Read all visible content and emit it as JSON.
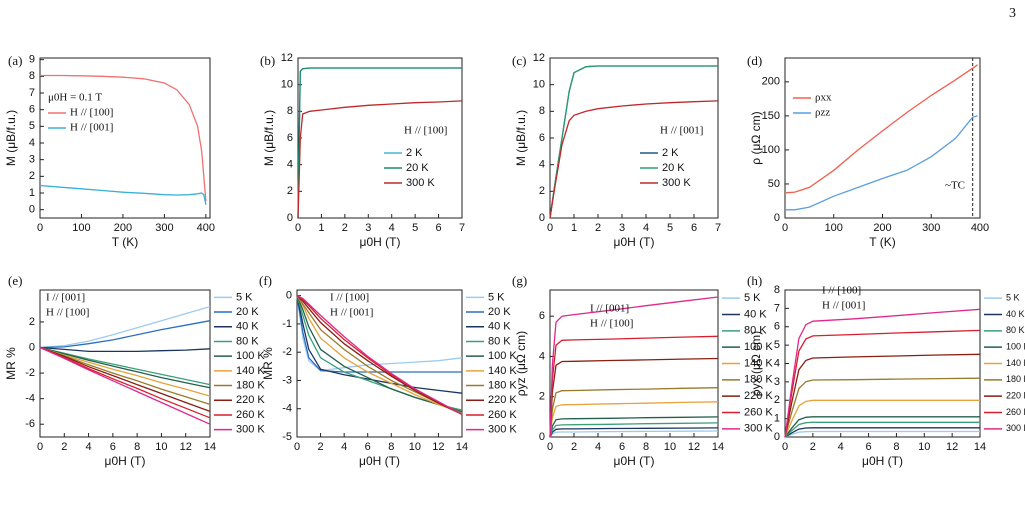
{
  "page_number": "3",
  "chart_data": [
    {
      "type": "line",
      "label": "(a)",
      "xlabel": "T (K)",
      "ylabel": "M (μB/f.u.)",
      "xlim": [
        0,
        410
      ],
      "ylim": [
        -0.5,
        9.1
      ],
      "xticks": [
        0,
        100,
        200,
        300,
        400
      ],
      "yticks": [
        0,
        1,
        2,
        3,
        4,
        5,
        6,
        7,
        8,
        9
      ],
      "legend": "upper left",
      "annotations": [
        "μ0H = 0.1 T"
      ],
      "x": [
        0,
        50,
        100,
        150,
        200,
        250,
        300,
        330,
        360,
        380,
        390,
        395,
        400
      ],
      "series": [
        {
          "name": "H // [100]",
          "color": "#f07070",
          "values": [
            8.05,
            8.05,
            8.03,
            8.0,
            7.95,
            7.85,
            7.6,
            7.2,
            6.3,
            5,
            3.5,
            2,
            0.5
          ]
        },
        {
          "name": "H // [001]",
          "color": "#3ab0d8",
          "values": [
            1.45,
            1.35,
            1.25,
            1.15,
            1.05,
            0.98,
            0.9,
            0.88,
            0.9,
            0.95,
            1.0,
            0.9,
            0.3
          ]
        }
      ]
    },
    {
      "type": "line",
      "label": "(b)",
      "xlabel": "μ0H (T)",
      "ylabel": "M (μB/f.u.)",
      "xlim": [
        0,
        7
      ],
      "ylim": [
        0,
        12
      ],
      "xticks": [
        0,
        1,
        2,
        3,
        4,
        5,
        6,
        7
      ],
      "yticks": [
        0,
        2,
        4,
        6,
        8,
        10,
        12
      ],
      "legend": "lower right",
      "annotations": [
        "H // [100]"
      ],
      "x": [
        0,
        0.05,
        0.1,
        0.2,
        0.5,
        1,
        2,
        3,
        4,
        5,
        6,
        7
      ],
      "series": [
        {
          "name": "2 K",
          "color": "#40b8d8",
          "values": [
            0,
            6,
            11,
            11.2,
            11.25,
            11.25,
            11.25,
            11.25,
            11.25,
            11.25,
            11.25,
            11.25
          ]
        },
        {
          "name": "20 K",
          "color": "#1a8a6a",
          "values": [
            0,
            6,
            11,
            11.2,
            11.25,
            11.25,
            11.25,
            11.25,
            11.25,
            11.25,
            11.25,
            11.25
          ]
        },
        {
          "name": "300 K",
          "color": "#c0282a",
          "values": [
            0,
            3,
            6,
            7.8,
            8.0,
            8.1,
            8.3,
            8.45,
            8.55,
            8.65,
            8.7,
            8.78
          ]
        }
      ]
    },
    {
      "type": "line",
      "label": "(c)",
      "xlabel": "μ0H (T)",
      "ylabel": "M (μB/f.u.)",
      "xlim": [
        0,
        7
      ],
      "ylim": [
        0,
        12
      ],
      "xticks": [
        0,
        1,
        2,
        3,
        4,
        5,
        6,
        7
      ],
      "yticks": [
        0,
        2,
        4,
        6,
        8,
        10,
        12
      ],
      "legend": "lower right",
      "annotations": [
        "H // [001]"
      ],
      "x": [
        0,
        0.2,
        0.5,
        0.8,
        1,
        1.5,
        2,
        3,
        4,
        5,
        6,
        7
      ],
      "series": [
        {
          "name": "2 K",
          "color": "#1a5a8a",
          "values": [
            0,
            2.5,
            6,
            9.5,
            10.9,
            11.35,
            11.4,
            11.4,
            11.4,
            11.4,
            11.4,
            11.4
          ]
        },
        {
          "name": "20 K",
          "color": "#2aa070",
          "values": [
            0,
            2.5,
            6,
            9.5,
            10.9,
            11.35,
            11.4,
            11.4,
            11.4,
            11.4,
            11.4,
            11.4
          ]
        },
        {
          "name": "300 K",
          "color": "#c0282a",
          "values": [
            0,
            2.3,
            5.5,
            7.3,
            7.7,
            8.0,
            8.2,
            8.4,
            8.55,
            8.65,
            8.72,
            8.78
          ]
        }
      ]
    },
    {
      "type": "line",
      "label": "(d)",
      "xlabel": "T (K)",
      "ylabel": "ρ (μΩ cm)",
      "xlim": [
        0,
        400
      ],
      "ylim": [
        0,
        235
      ],
      "xticks": [
        0,
        100,
        200,
        300,
        400
      ],
      "yticks": [
        0,
        50,
        100,
        150,
        200
      ],
      "legend": "upper left",
      "annotations": [
        "~TC"
      ],
      "vline": 385,
      "x": [
        2,
        20,
        50,
        100,
        150,
        200,
        250,
        300,
        350,
        385,
        395
      ],
      "series": [
        {
          "name": "ρxx",
          "color": "#f06050",
          "values": [
            37,
            38,
            45,
            70,
            100,
            128,
            155,
            180,
            203,
            220,
            225
          ]
        },
        {
          "name": "ρzz",
          "color": "#5a9ee0",
          "values": [
            12,
            12,
            16,
            32,
            45,
            58,
            70,
            90,
            117,
            148,
            150
          ]
        }
      ]
    },
    {
      "type": "line",
      "label": "(e)",
      "xlabel": "μ0H (T)",
      "ylabel": "MR %",
      "xlim": [
        0,
        14
      ],
      "ylim": [
        -7,
        4.5
      ],
      "xticks": [
        0,
        2,
        4,
        6,
        8,
        10,
        12,
        14
      ],
      "yticks": [
        -6,
        -4,
        -2,
        0,
        2
      ],
      "legend": "outside right",
      "annotations": [
        "I // [001]",
        "H // [100]"
      ],
      "x": [
        0,
        2,
        4,
        6,
        8,
        10,
        12,
        14
      ],
      "series": [
        {
          "name": "5 K",
          "color": "#9ccbf0",
          "values": [
            0,
            0.15,
            0.5,
            1.0,
            1.55,
            2.1,
            2.65,
            3.2
          ]
        },
        {
          "name": "20 K",
          "color": "#2a6fc0",
          "values": [
            0,
            0.05,
            0.3,
            0.6,
            1.0,
            1.4,
            1.75,
            2.1
          ]
        },
        {
          "name": "40 K",
          "color": "#1b355f",
          "values": [
            0,
            -0.15,
            -0.3,
            -0.3,
            -0.3,
            -0.25,
            -0.2,
            -0.1
          ]
        },
        {
          "name": "80 K",
          "color": "#3aa07a",
          "values": [
            0,
            -0.45,
            -0.9,
            -1.3,
            -1.7,
            -2.1,
            -2.5,
            -2.9
          ]
        },
        {
          "name": "100 K",
          "color": "#22604a",
          "values": [
            0,
            -0.5,
            -1.0,
            -1.45,
            -1.9,
            -2.35,
            -2.75,
            -3.15
          ]
        },
        {
          "name": "140 K",
          "color": "#e8a23c",
          "values": [
            0,
            -0.6,
            -1.15,
            -1.7,
            -2.2,
            -2.75,
            -3.25,
            -3.8
          ]
        },
        {
          "name": "180 K",
          "color": "#9a7a2a",
          "values": [
            0,
            -0.65,
            -1.35,
            -2.0,
            -2.6,
            -3.25,
            -3.85,
            -4.45
          ]
        },
        {
          "name": "220 K",
          "color": "#8a1e12",
          "values": [
            0,
            -0.7,
            -1.5,
            -2.2,
            -2.9,
            -3.6,
            -4.3,
            -5.0
          ]
        },
        {
          "name": "260 K",
          "color": "#d81e2e",
          "values": [
            0,
            -0.8,
            -1.65,
            -2.45,
            -3.2,
            -4.0,
            -4.75,
            -5.5
          ]
        },
        {
          "name": "300 K",
          "color": "#e0288c",
          "values": [
            0,
            -0.85,
            -1.75,
            -2.6,
            -3.45,
            -4.3,
            -5.15,
            -6.0
          ]
        }
      ]
    },
    {
      "type": "line",
      "label": "(f)",
      "xlabel": "μ0H (T)",
      "ylabel": "MR %",
      "xlim": [
        0,
        14
      ],
      "ylim": [
        -5,
        0.2
      ],
      "xticks": [
        0,
        2,
        4,
        6,
        8,
        10,
        12,
        14
      ],
      "yticks": [
        -5,
        -4,
        -3,
        -2,
        -1,
        0
      ],
      "legend": "outside right",
      "annotations": [
        "I // [100]",
        "H // [001]"
      ],
      "x": [
        0,
        0.5,
        1,
        2,
        4,
        6,
        8,
        10,
        12,
        14
      ],
      "series": [
        {
          "name": "5 K",
          "color": "#9ccbf0",
          "values": [
            0,
            -1.5,
            -2.3,
            -2.65,
            -2.55,
            -2.45,
            -2.4,
            -2.35,
            -2.3,
            -2.2
          ]
        },
        {
          "name": "20 K",
          "color": "#2a6fc0",
          "values": [
            0,
            -1.3,
            -2.2,
            -2.65,
            -2.7,
            -2.7,
            -2.7,
            -2.7,
            -2.7,
            -2.7
          ]
        },
        {
          "name": "40 K",
          "color": "#1b355f",
          "values": [
            0,
            -1.0,
            -1.9,
            -2.6,
            -2.8,
            -2.95,
            -3.1,
            -3.25,
            -3.35,
            -3.45
          ]
        },
        {
          "name": "80 K",
          "color": "#3aa07a",
          "values": [
            0,
            -0.7,
            -1.4,
            -2.2,
            -2.7,
            -3.0,
            -3.3,
            -3.6,
            -3.85,
            -4.05
          ]
        },
        {
          "name": "100 K",
          "color": "#22604a",
          "values": [
            0,
            -0.5,
            -1.1,
            -1.9,
            -2.5,
            -2.9,
            -3.3,
            -3.6,
            -3.85,
            -4.1
          ]
        },
        {
          "name": "140 K",
          "color": "#e8a23c",
          "values": [
            0,
            -0.35,
            -0.8,
            -1.5,
            -2.2,
            -2.7,
            -3.1,
            -3.5,
            -3.85,
            -4.15
          ]
        },
        {
          "name": "180 K",
          "color": "#9a7a2a",
          "values": [
            0,
            -0.3,
            -0.6,
            -1.2,
            -1.9,
            -2.5,
            -3.0,
            -3.4,
            -3.8,
            -4.15
          ]
        },
        {
          "name": "220 K",
          "color": "#8a1e12",
          "values": [
            0,
            -0.2,
            -0.45,
            -0.95,
            -1.7,
            -2.3,
            -2.85,
            -3.35,
            -3.8,
            -4.2
          ]
        },
        {
          "name": "260 K",
          "color": "#d81e2e",
          "values": [
            0,
            -0.15,
            -0.35,
            -0.8,
            -1.55,
            -2.2,
            -2.8,
            -3.3,
            -3.75,
            -4.2
          ]
        },
        {
          "name": "300 K",
          "color": "#e0288c",
          "values": [
            0,
            -0.1,
            -0.3,
            -0.7,
            -1.45,
            -2.15,
            -2.75,
            -3.3,
            -3.75,
            -4.2
          ]
        }
      ]
    },
    {
      "type": "line",
      "label": "(g)",
      "xlabel": "μ0H (T)",
      "ylabel": "ρyz (μΩ cm)",
      "xlim": [
        0,
        14
      ],
      "ylim": [
        0,
        7.3
      ],
      "xticks": [
        0,
        2,
        4,
        6,
        8,
        10,
        12,
        14
      ],
      "yticks": [
        0,
        2,
        4,
        6
      ],
      "legend": "outside right",
      "annotations": [
        "I // [001]",
        "H // [100]"
      ],
      "x": [
        0,
        0.2,
        0.5,
        1,
        2,
        5,
        8,
        11,
        14
      ],
      "series": [
        {
          "name": "5 K",
          "color": "#9ccbf0",
          "values": [
            0,
            0.15,
            0.24,
            0.25,
            0.25,
            0.27,
            0.28,
            0.29,
            0.3
          ]
        },
        {
          "name": "40 K",
          "color": "#1b355f",
          "values": [
            0,
            0.24,
            0.38,
            0.4,
            0.4,
            0.42,
            0.43,
            0.44,
            0.45
          ]
        },
        {
          "name": "80 K",
          "color": "#3aa07a",
          "values": [
            0,
            0.36,
            0.57,
            0.6,
            0.61,
            0.63,
            0.66,
            0.68,
            0.7
          ]
        },
        {
          "name": "100 K",
          "color": "#22604a",
          "values": [
            0,
            0.54,
            0.86,
            0.9,
            0.91,
            0.93,
            0.96,
            0.98,
            1.0
          ]
        },
        {
          "name": "140 K",
          "color": "#e8a23c",
          "values": [
            0,
            0.96,
            1.52,
            1.6,
            1.61,
            1.65,
            1.68,
            1.72,
            1.75
          ]
        },
        {
          "name": "180 K",
          "color": "#9a7a2a",
          "values": [
            0,
            1.38,
            2.19,
            2.3,
            2.31,
            2.35,
            2.38,
            2.42,
            2.45
          ]
        },
        {
          "name": "220 K",
          "color": "#8a1e12",
          "values": [
            0,
            2.25,
            3.56,
            3.75,
            3.76,
            3.8,
            3.83,
            3.87,
            3.9
          ]
        },
        {
          "name": "260 K",
          "color": "#d81e2e",
          "values": [
            0,
            2.88,
            4.56,
            4.8,
            4.82,
            4.86,
            4.91,
            4.96,
            5.0
          ]
        },
        {
          "name": "300 K",
          "color": "#e0288c",
          "values": [
            0,
            3.6,
            5.7,
            6.0,
            6.08,
            6.29,
            6.52,
            6.74,
            6.95
          ]
        }
      ]
    },
    {
      "type": "line",
      "label": "(h)",
      "xlabel": "μ0H (T)",
      "ylabel": "ρyx (μΩ cm)",
      "xlim": [
        0,
        14
      ],
      "ylim": [
        0,
        8
      ],
      "xticks": [
        0,
        2,
        4,
        6,
        8,
        10,
        12,
        14
      ],
      "yticks": [
        0,
        1,
        2,
        3,
        4,
        5,
        6,
        7,
        8
      ],
      "legend": "outside right",
      "annotations": [
        "I // [100]",
        "H // [001]"
      ],
      "x": [
        0,
        0.5,
        1,
        1.5,
        2,
        5,
        8,
        11,
        14
      ],
      "series": [
        {
          "name": "5 K",
          "color": "#9ccbf0",
          "values": [
            0,
            0.14,
            0.26,
            0.29,
            0.3,
            0.3,
            0.3,
            0.3,
            0.3
          ]
        },
        {
          "name": "40 K",
          "color": "#1b355f",
          "values": [
            0,
            0.23,
            0.43,
            0.49,
            0.5,
            0.5,
            0.5,
            0.5,
            0.5
          ]
        },
        {
          "name": "80 K",
          "color": "#3aa07a",
          "values": [
            0,
            0.36,
            0.68,
            0.78,
            0.8,
            0.8,
            0.8,
            0.8,
            0.8
          ]
        },
        {
          "name": "100 K",
          "color": "#22604a",
          "values": [
            0,
            0.5,
            0.94,
            1.07,
            1.1,
            1.1,
            1.1,
            1.1,
            1.1
          ]
        },
        {
          "name": "140 K",
          "color": "#e8a23c",
          "values": [
            0,
            0.9,
            1.7,
            1.94,
            2.0,
            2.0,
            2.0,
            2.0,
            2.0
          ]
        },
        {
          "name": "180 K",
          "color": "#9a7a2a",
          "values": [
            0,
            1.4,
            2.64,
            3.01,
            3.1,
            3.12,
            3.15,
            3.18,
            3.2
          ]
        },
        {
          "name": "220 K",
          "color": "#8a1e12",
          "values": [
            0,
            1.94,
            3.66,
            4.17,
            4.3,
            4.36,
            4.41,
            4.46,
            4.5
          ]
        },
        {
          "name": "260 K",
          "color": "#d81e2e",
          "values": [
            0,
            2.48,
            4.68,
            5.34,
            5.5,
            5.58,
            5.66,
            5.73,
            5.8
          ]
        },
        {
          "name": "300 K",
          "color": "#e0288c",
          "values": [
            0,
            2.84,
            5.36,
            6.11,
            6.3,
            6.43,
            6.6,
            6.78,
            6.95
          ]
        }
      ]
    }
  ]
}
